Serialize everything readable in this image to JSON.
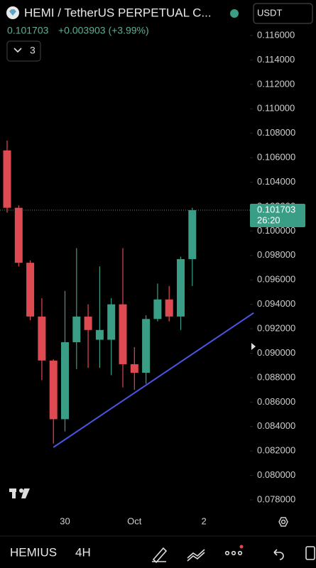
{
  "header": {
    "title": "HEMI / TetherUS PERPETUAL C...",
    "quote_currency": "USDT",
    "change": "+0.003903 (+3.99%)",
    "indicator_count": "3"
  },
  "chart_data": {
    "type": "candlestick",
    "categories": [
      null,
      null,
      null,
      null,
      null,
      "30",
      null,
      null,
      null,
      null,
      null,
      "Oct",
      null,
      null,
      null,
      null,
      null,
      "2"
    ],
    "open": [
      0.1066,
      0.1019,
      0.0974,
      0.093,
      0.0894,
      0.0846,
      0.0909,
      0.093,
      0.0911,
      0.0911,
      0.094,
      0.0891,
      0.0884,
      0.0928,
      0.0944,
      0.093,
      0.0977,
      null
    ],
    "high": [
      0.1074,
      0.1021,
      0.0976,
      0.0945,
      0.0895,
      0.0951,
      0.0986,
      0.094,
      0.0971,
      0.0945,
      0.0986,
      0.0905,
      0.0931,
      0.0957,
      0.0955,
      0.0979,
      0.1019,
      null
    ],
    "low": [
      0.1015,
      0.0971,
      0.0927,
      0.0878,
      0.0826,
      0.0836,
      0.0887,
      0.0888,
      0.0888,
      0.0882,
      0.0872,
      0.087,
      0.0875,
      0.0926,
      0.0926,
      0.0919,
      0.0955,
      null
    ],
    "close": [
      0.1019,
      0.0974,
      0.093,
      0.0894,
      0.0846,
      0.0909,
      0.093,
      0.0919,
      0.0919,
      0.094,
      0.0891,
      0.0884,
      0.0928,
      0.0944,
      0.093,
      0.0977,
      0.101703,
      null
    ],
    "up_color": "#3a9e86",
    "down_color": "#de4a52",
    "ylim": [
      0.078,
      0.116
    ],
    "yticks": [
      {
        "value": 0.078,
        "label": "0.078000"
      },
      {
        "value": 0.08,
        "label": "0.080000"
      },
      {
        "value": 0.082,
        "label": "0.082000"
      },
      {
        "value": 0.084,
        "label": "0.084000"
      },
      {
        "value": 0.086,
        "label": "0.086000"
      },
      {
        "value": 0.088,
        "label": "0.088000"
      },
      {
        "value": 0.09,
        "label": "0.090000"
      },
      {
        "value": 0.092,
        "label": "0.092000"
      },
      {
        "value": 0.094,
        "label": "0.094000"
      },
      {
        "value": 0.096,
        "label": "0.096000"
      },
      {
        "value": 0.098,
        "label": "0.098000"
      },
      {
        "value": 0.1,
        "label": "0.100000"
      },
      {
        "value": 0.102,
        "label": "0.102000"
      },
      {
        "value": 0.104,
        "label": "0.104000"
      },
      {
        "value": 0.106,
        "label": "0.106000"
      },
      {
        "value": 0.108,
        "label": "0.108000"
      },
      {
        "value": 0.11,
        "label": "0.110000"
      },
      {
        "value": 0.112,
        "label": "0.112000"
      },
      {
        "value": 0.114,
        "label": "0.114000"
      },
      {
        "value": 0.116,
        "label": "0.116000"
      }
    ],
    "last_price": 0.101703,
    "countdown": "26:20",
    "trendline": {
      "x": [
        4,
        21.3
      ],
      "y": [
        0.0823,
        0.0933
      ],
      "color": "#4b55e6"
    }
  },
  "footer": {
    "symbol": "HEMIUS",
    "interval": "4H"
  }
}
